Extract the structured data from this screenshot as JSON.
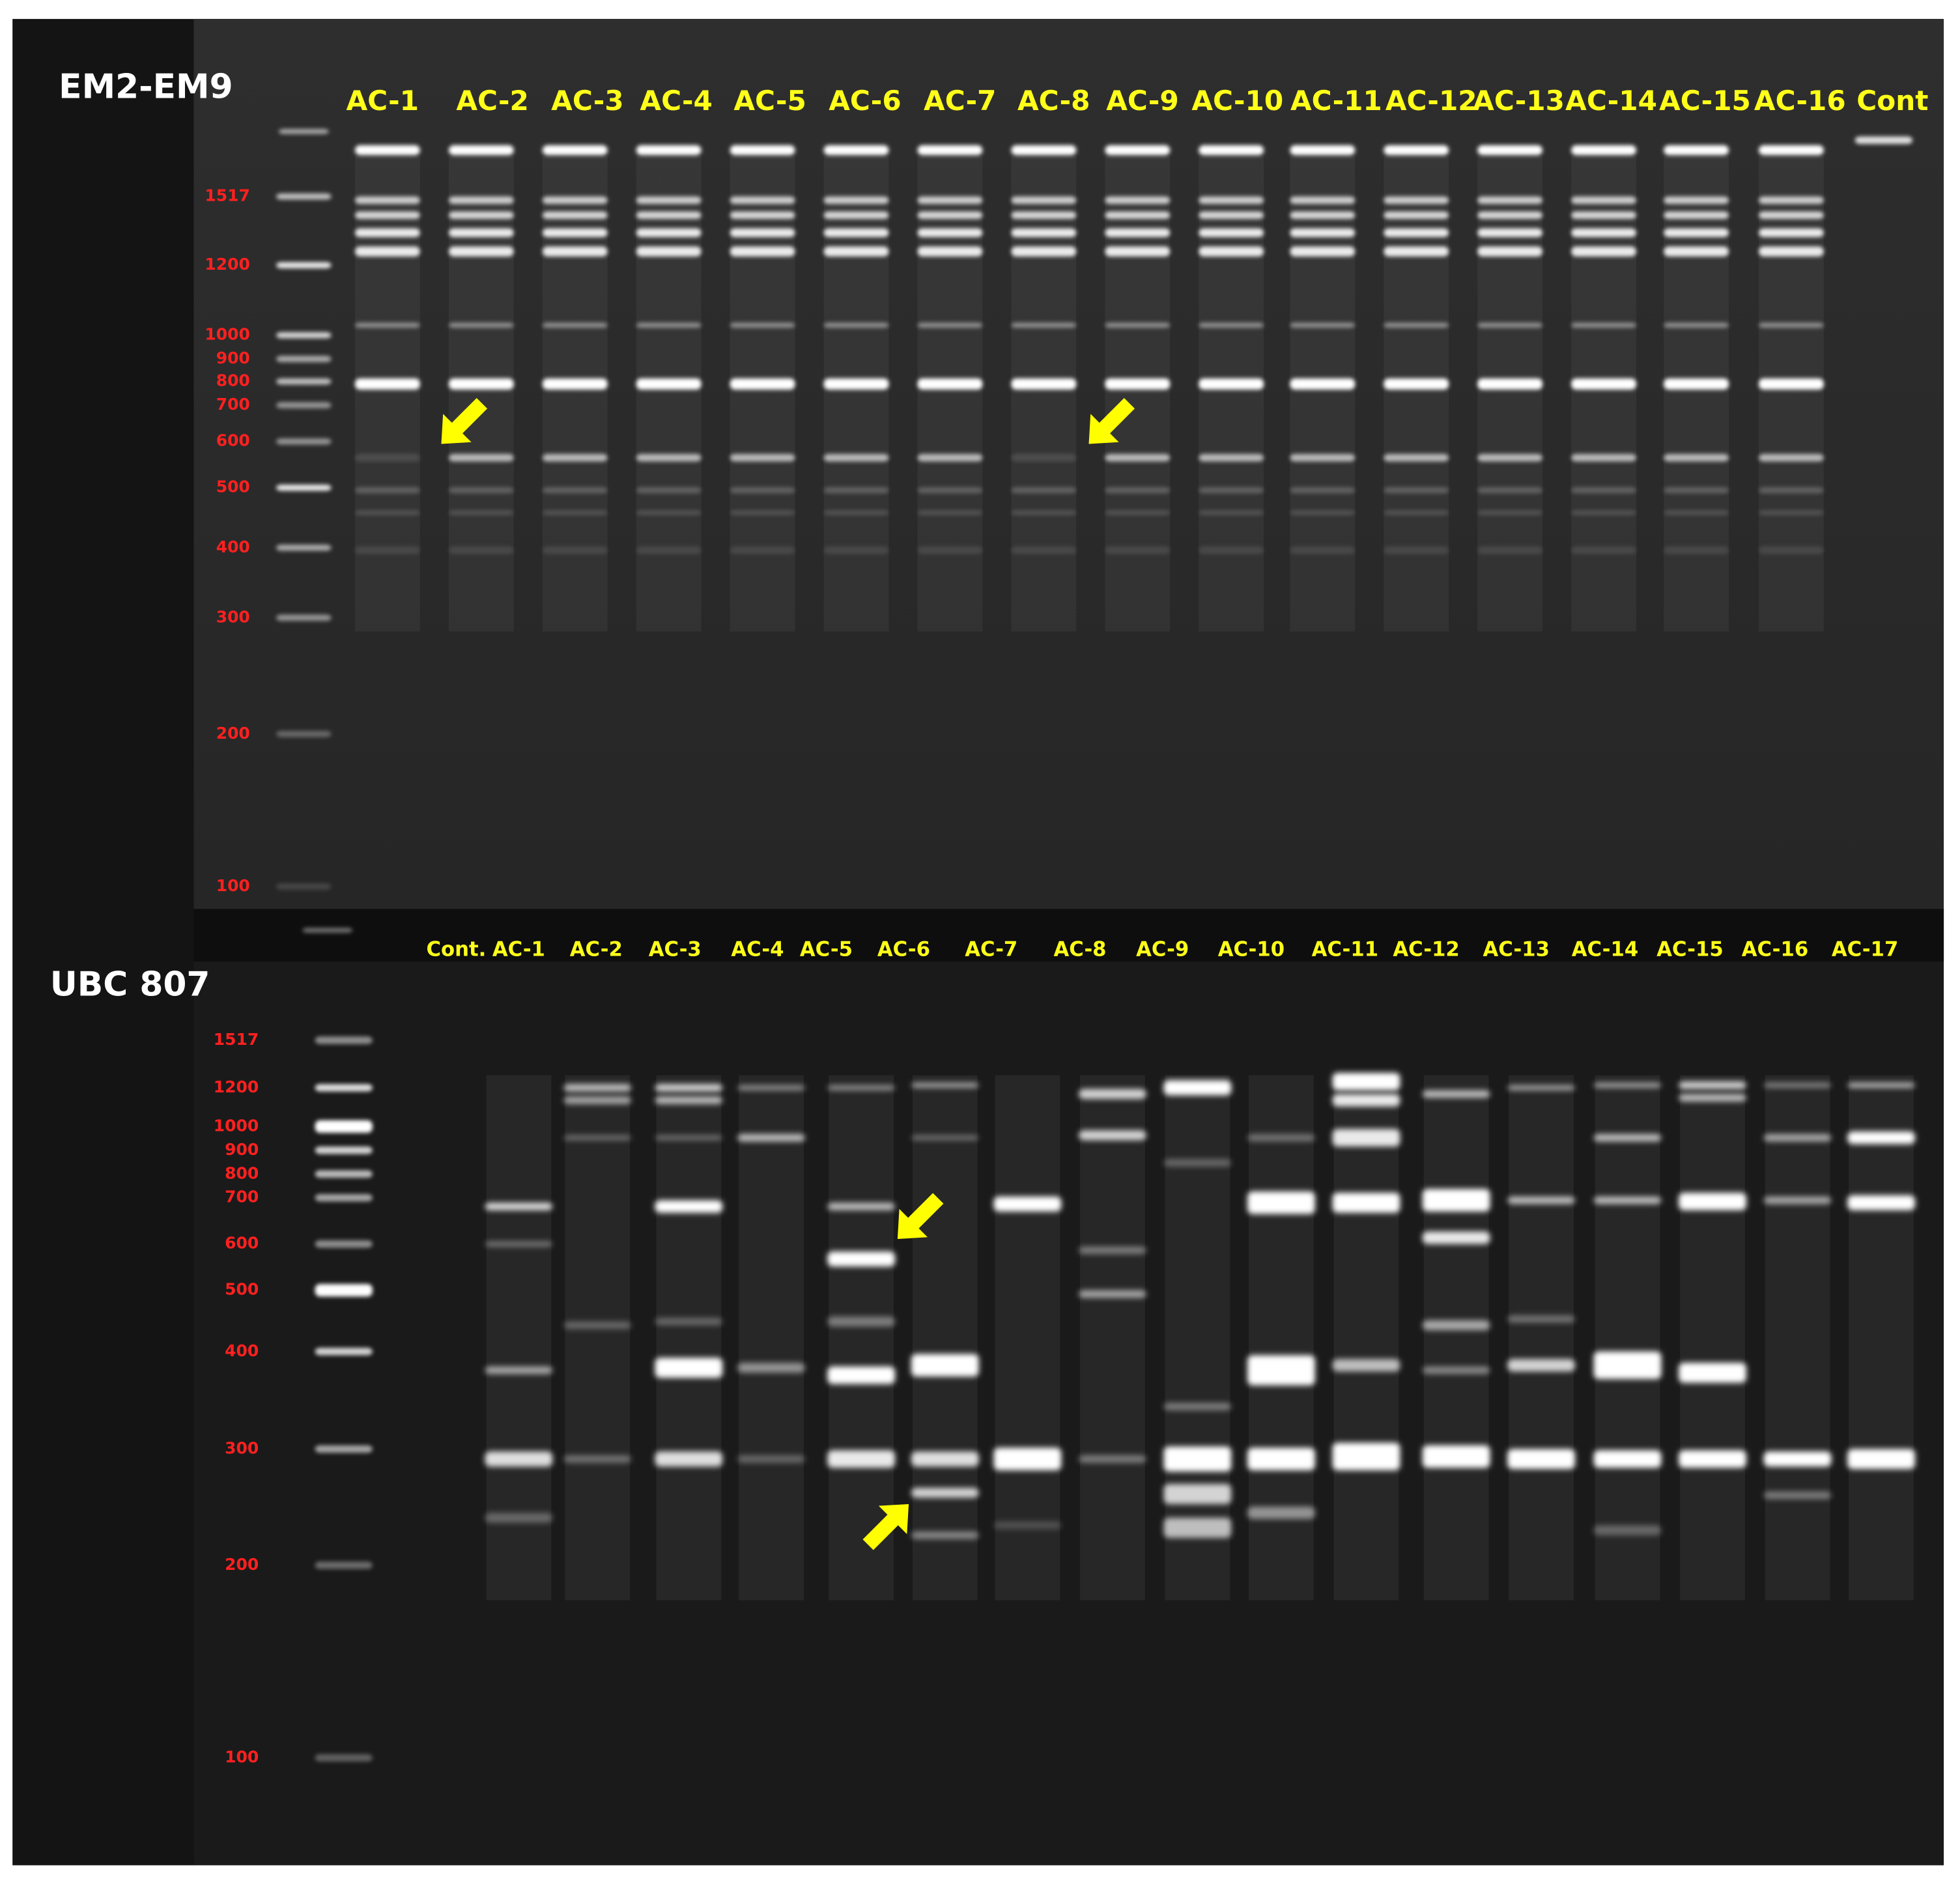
{
  "panels": [
    {
      "title": "EM2-EM9",
      "ladder": [
        "1517",
        "1200",
        "1000",
        "900",
        "800",
        "700",
        "600",
        "500",
        "400",
        "300",
        "200",
        "100"
      ],
      "lanes": [
        "AC-1",
        "AC-2",
        "AC-3",
        "AC-4",
        "AC-5",
        "AC-6",
        "AC-7",
        "AC-8",
        "AC-9",
        "AC-10",
        "AC-11",
        "AC-12",
        "AC-13",
        "AC-14",
        "AC-15",
        "AC-16",
        "Cont"
      ]
    },
    {
      "title": "UBC 807",
      "ladder": [
        "1517",
        "1200",
        "1000",
        "900",
        "800",
        "700",
        "600",
        "500",
        "400",
        "300",
        "200",
        "100"
      ],
      "lanes": [
        "Cont.",
        "AC-1",
        "AC-2",
        "AC-3",
        "AC-4",
        "AC-5",
        "AC-6",
        "AC-7",
        "AC-8",
        "AC-9",
        "AC-10",
        "AC-11",
        "AC-12",
        "AC-13",
        "AC-14",
        "AC-15",
        "AC-16",
        "AC-17"
      ]
    }
  ]
}
